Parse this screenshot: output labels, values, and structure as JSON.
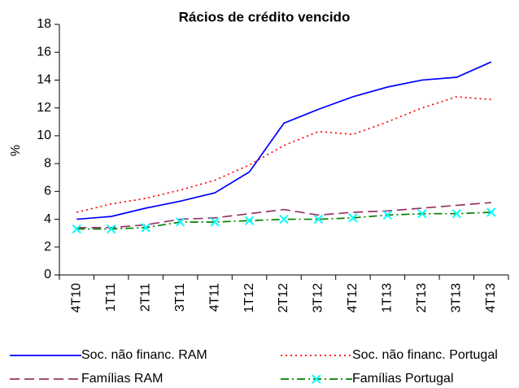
{
  "chart_data": {
    "type": "line",
    "title": "Rácios de crédito vencido",
    "y_label": "%",
    "categories": [
      "4T10",
      "1T11",
      "2T11",
      "3T11",
      "4T11",
      "1T12",
      "2T12",
      "3T12",
      "4T12",
      "1T13",
      "2T13",
      "3T13",
      "4T13"
    ],
    "series": [
      {
        "name": "Soc. não financ. RAM",
        "color": "#0000ff",
        "style": "solid",
        "values": [
          4.0,
          4.2,
          4.8,
          5.3,
          5.9,
          7.4,
          10.9,
          11.9,
          12.8,
          13.5,
          14.0,
          14.2,
          15.3
        ]
      },
      {
        "name": "Soc. não financ. Portugal",
        "color": "#ff0000",
        "style": "dotted",
        "values": [
          4.5,
          5.1,
          5.5,
          6.1,
          6.8,
          7.9,
          9.3,
          10.3,
          10.1,
          11.0,
          12.0,
          12.8,
          12.6
        ]
      },
      {
        "name": "Famílias RAM",
        "color": "#993366",
        "style": "dashed",
        "values": [
          3.4,
          3.4,
          3.6,
          4.0,
          4.1,
          4.4,
          4.7,
          4.3,
          4.5,
          4.6,
          4.8,
          5.0,
          5.2
        ]
      },
      {
        "name": "Famílias Portugal",
        "color": "#008000",
        "style": "dashdot",
        "marker": "x",
        "marker_color": "#00ffff",
        "values": [
          3.3,
          3.3,
          3.4,
          3.8,
          3.8,
          3.9,
          4.0,
          4.0,
          4.1,
          4.3,
          4.4,
          4.4,
          4.5
        ]
      }
    ],
    "ylim": [
      0,
      18
    ],
    "yticks": [
      0,
      2,
      4,
      6,
      8,
      10,
      12,
      14,
      16,
      18
    ],
    "grid": false,
    "legend": "bottom"
  }
}
